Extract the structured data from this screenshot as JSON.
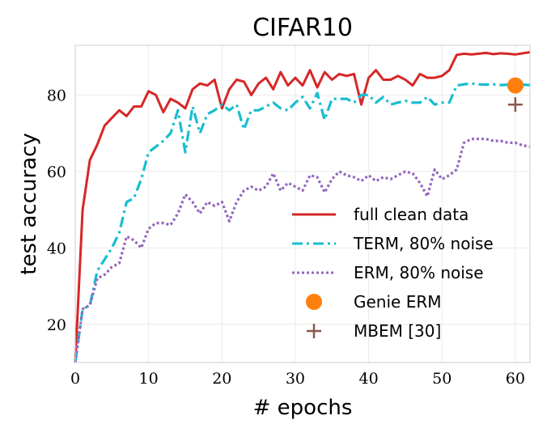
{
  "chart_data": {
    "type": "line",
    "title": "CIFAR10",
    "xlabel": "# epochs",
    "ylabel": "test accuracy",
    "xlim": [
      0,
      62
    ],
    "ylim": [
      10,
      93
    ],
    "xticks": [
      0,
      10,
      20,
      30,
      40,
      50,
      60
    ],
    "yticks": [
      20,
      40,
      60,
      80
    ],
    "grid": true,
    "legend_position": "lower-right",
    "series": [
      {
        "name": "full clean data",
        "color": "#d62728",
        "style": "solid",
        "x": [
          0,
          1,
          2,
          3,
          4,
          5,
          6,
          7,
          8,
          9,
          10,
          11,
          12,
          13,
          14,
          15,
          16,
          17,
          18,
          19,
          20,
          21,
          22,
          23,
          24,
          25,
          26,
          27,
          28,
          29,
          30,
          31,
          32,
          33,
          34,
          35,
          36,
          37,
          38,
          39,
          40,
          41,
          42,
          43,
          44,
          45,
          46,
          47,
          48,
          49,
          50,
          51,
          52,
          53,
          54,
          55,
          56,
          57,
          58,
          59,
          60,
          61,
          62
        ],
        "values": [
          10,
          50,
          63,
          67,
          72,
          74,
          76,
          74.5,
          77,
          77,
          81,
          80,
          75.5,
          79,
          78,
          76.5,
          81.5,
          83,
          82.5,
          84,
          76.5,
          81.5,
          84,
          83.5,
          80,
          83,
          84.5,
          81.5,
          86,
          82.5,
          84.5,
          82.5,
          86.5,
          82,
          86,
          84,
          85.5,
          85,
          85.5,
          77.5,
          84.5,
          86.5,
          84,
          84,
          85,
          84,
          82.5,
          85.5,
          84.5,
          84.5,
          85,
          86.5,
          90.5,
          90.8,
          90.6,
          90.8,
          91,
          90.7,
          90.9,
          90.8,
          90.6,
          90.9,
          91.2
        ]
      },
      {
        "name": "TERM, 80% noise",
        "color": "#17becf",
        "style": "dashdot",
        "x": [
          0,
          1,
          2,
          3,
          4,
          5,
          6,
          7,
          8,
          9,
          10,
          11,
          12,
          13,
          14,
          15,
          16,
          17,
          18,
          19,
          20,
          21,
          22,
          23,
          24,
          25,
          26,
          27,
          28,
          29,
          30,
          31,
          32,
          33,
          34,
          35,
          36,
          37,
          38,
          39,
          40,
          41,
          42,
          43,
          44,
          45,
          46,
          47,
          48,
          49,
          50,
          51,
          52,
          53,
          54,
          55,
          56,
          57,
          58,
          59,
          60,
          61,
          62
        ],
        "values": [
          10,
          24,
          25,
          34,
          37,
          40,
          44,
          52,
          53,
          58,
          65,
          66.5,
          68,
          70,
          76,
          65,
          77,
          70,
          75,
          76,
          77.5,
          76,
          77.5,
          71,
          76,
          76,
          77,
          78,
          76.5,
          76,
          78,
          79.5,
          76.5,
          80.5,
          73.5,
          79,
          79,
          79,
          78,
          80,
          80,
          78,
          79.5,
          77.5,
          78,
          78.5,
          78,
          78,
          79.5,
          77.5,
          78,
          78,
          82.5,
          82.8,
          83,
          82.8,
          82.7,
          82.8,
          82.6,
          82.7,
          82.7,
          82.7,
          82.6
        ]
      },
      {
        "name": "ERM, 80% noise",
        "color": "#9467bd",
        "style": "dotted",
        "x": [
          0,
          1,
          2,
          3,
          4,
          5,
          6,
          7,
          8,
          9,
          10,
          11,
          12,
          13,
          14,
          15,
          16,
          17,
          18,
          19,
          20,
          21,
          22,
          23,
          24,
          25,
          26,
          27,
          28,
          29,
          30,
          31,
          32,
          33,
          34,
          35,
          36,
          37,
          38,
          39,
          40,
          41,
          42,
          43,
          44,
          45,
          46,
          47,
          48,
          49,
          50,
          51,
          52,
          53,
          54,
          55,
          56,
          57,
          58,
          59,
          60,
          61,
          62
        ],
        "values": [
          10,
          24,
          25,
          32,
          33,
          35,
          36,
          43,
          42,
          40,
          45,
          46.5,
          46.5,
          46,
          49,
          54,
          52,
          49,
          52,
          51,
          52,
          47,
          52,
          55,
          56,
          55,
          56,
          59.5,
          55,
          57,
          56,
          55,
          59,
          58.5,
          54.5,
          58,
          60,
          59,
          58.5,
          57.5,
          59,
          57.5,
          58.5,
          58,
          59,
          60,
          59.5,
          57,
          53.5,
          60.5,
          58,
          59,
          60.5,
          67.5,
          68.5,
          68.5,
          68.5,
          68,
          68,
          67.5,
          67.5,
          66.8,
          66.5
        ]
      },
      {
        "name": "Genie ERM",
        "color": "#ff7f0e",
        "style": "marker-circle",
        "x": [
          60
        ],
        "values": [
          82.5
        ]
      },
      {
        "name": "MBEM [30]",
        "color": "#8c564b",
        "style": "marker-plus",
        "x": [
          60
        ],
        "values": [
          77.5
        ]
      }
    ]
  }
}
